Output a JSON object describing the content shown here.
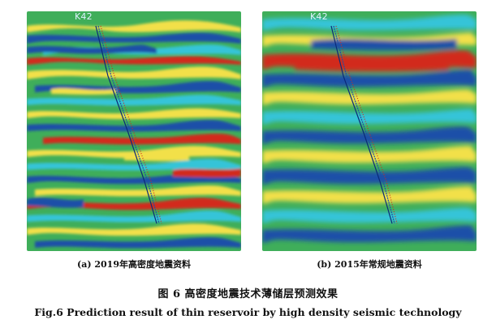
{
  "figure": {
    "panels": [
      {
        "well_label": "K42",
        "caption": "(a) 2019年高密度地震资料"
      },
      {
        "well_label": "K42",
        "caption": "(b) 2015年常规地震资料"
      }
    ],
    "title_cn": "图 6   高密度地震技术薄储层预测效果",
    "title_en": "Fig.6 Prediction result of thin reservoir by high density seismic technology"
  },
  "colors": {
    "background_green": "#3fae5a",
    "blue": "#1f4fa8",
    "cyan": "#35c4d8",
    "yellow": "#f2e04a",
    "red": "#d22a1e",
    "well_path": "#0b2a78"
  }
}
